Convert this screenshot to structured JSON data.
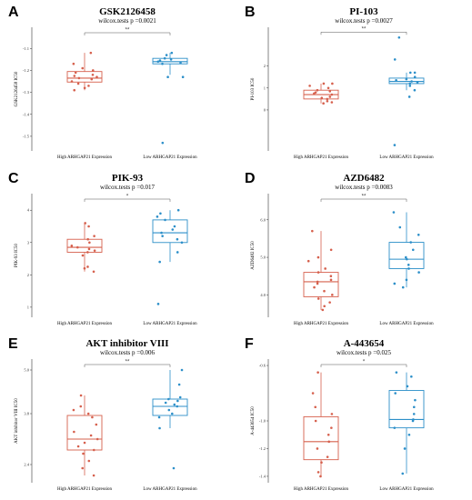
{
  "colors": {
    "high": "#d6604d",
    "low": "#2c8fc9"
  },
  "chart_data": [
    {
      "type": "box",
      "letter": "A",
      "title": "GSK2126458",
      "subtitle": "wilcox.tests p =0.0021",
      "sig": "**",
      "ylabel": "GSK2126458 IC50",
      "ylim": [
        -1.55,
        -1.02
      ],
      "yticks": [
        "-1.1",
        "-1.2",
        "-1.3",
        "-1.4",
        "-1.5"
      ],
      "ytick_values": [
        -1.1,
        -1.2,
        -1.3,
        -1.4,
        -1.5
      ],
      "categories": [
        "High ARHGAP21 Expression",
        "Low ARHGAP21 Expression"
      ],
      "series": [
        {
          "min": -1.29,
          "q1": -1.253,
          "median": -1.235,
          "q3": -1.205,
          "max": -1.12,
          "points": [
            -1.12,
            -1.17,
            -1.19,
            -1.2,
            -1.21,
            -1.22,
            -1.225,
            -1.23,
            -1.235,
            -1.24,
            -1.25,
            -1.26,
            -1.27,
            -1.28,
            -1.29
          ]
        },
        {
          "min": -1.22,
          "q1": -1.17,
          "median": -1.16,
          "q3": -1.145,
          "max": -1.12,
          "points": [
            -1.12,
            -1.13,
            -1.145,
            -1.15,
            -1.155,
            -1.16,
            -1.165,
            -1.17,
            -1.23,
            -1.23,
            -1.53
          ]
        }
      ]
    },
    {
      "type": "box",
      "letter": "B",
      "title": "PI-103",
      "subtitle": "wilcox.tests p =0.0027",
      "sig": "**",
      "ylabel": "PI-103 IC50",
      "ylim": [
        -1.7,
        3.6
      ],
      "yticks": [
        "2",
        "1",
        "0"
      ],
      "ytick_values": [
        2,
        1,
        0
      ],
      "categories": [
        "High ARHGAP21 Expression",
        "Low ARHGAP21 Expression"
      ],
      "series": [
        {
          "min": 0.3,
          "q1": 0.5,
          "median": 0.7,
          "q3": 0.9,
          "max": 1.2,
          "points": [
            0.3,
            0.35,
            0.4,
            0.5,
            0.55,
            0.6,
            0.7,
            0.75,
            0.8,
            0.85,
            0.9,
            1.0,
            1.1,
            1.2,
            1.2
          ]
        },
        {
          "min": 0.9,
          "q1": 1.2,
          "median": 1.3,
          "q3": 1.45,
          "max": 1.7,
          "points": [
            0.6,
            0.9,
            1.1,
            1.2,
            1.25,
            1.3,
            1.35,
            1.4,
            1.5,
            1.7,
            1.7,
            2.3,
            3.3,
            -1.6
          ]
        }
      ]
    },
    {
      "type": "box",
      "letter": "C",
      "title": "PIK-93",
      "subtitle": "wilcox.tests p =0.017",
      "sig": "*",
      "ylabel": "PIK-93 IC50",
      "ylim": [
        0.8,
        4.4
      ],
      "yticks": [
        "4",
        "3",
        "2",
        "1"
      ],
      "ytick_values": [
        4,
        3,
        2,
        1
      ],
      "categories": [
        "High ARHGAP21 Expression",
        "Low ARHGAP21 Expression"
      ],
      "series": [
        {
          "min": 2.1,
          "q1": 2.7,
          "median": 2.85,
          "q3": 3.1,
          "max": 3.6,
          "points": [
            2.1,
            2.2,
            2.25,
            2.6,
            2.7,
            2.75,
            2.8,
            2.85,
            2.9,
            3.0,
            3.1,
            3.2,
            3.5,
            3.6
          ]
        },
        {
          "min": 2.4,
          "q1": 3.0,
          "median": 3.3,
          "q3": 3.7,
          "max": 4.0,
          "points": [
            1.1,
            2.4,
            2.7,
            3.0,
            3.1,
            3.2,
            3.3,
            3.4,
            3.5,
            3.7,
            3.8,
            3.9,
            4.0
          ]
        }
      ]
    },
    {
      "type": "box",
      "letter": "D",
      "title": "AZD6482",
      "subtitle": "wilcox.tests p =0.0083",
      "sig": "**",
      "ylabel": "AZD6482 IC50",
      "ylim": [
        3.5,
        6.6
      ],
      "yticks": [
        "6.0",
        "5.0",
        "4.0"
      ],
      "ytick_values": [
        6.0,
        5.0,
        4.0
      ],
      "categories": [
        "High ARHGAP21 Expression",
        "Low ARHGAP21 Expression"
      ],
      "series": [
        {
          "min": 3.6,
          "q1": 3.95,
          "median": 4.35,
          "q3": 4.6,
          "max": 5.7,
          "points": [
            3.6,
            3.7,
            3.8,
            3.9,
            4.0,
            4.1,
            4.2,
            4.3,
            4.35,
            4.4,
            4.5,
            4.6,
            4.7,
            4.9,
            5.0,
            5.2,
            5.7
          ]
        },
        {
          "min": 4.2,
          "q1": 4.7,
          "median": 4.95,
          "q3": 5.4,
          "max": 6.2,
          "points": [
            4.2,
            4.3,
            4.4,
            4.6,
            4.7,
            4.8,
            4.95,
            5.0,
            5.2,
            5.4,
            5.6,
            5.8,
            6.2
          ]
        }
      ]
    },
    {
      "type": "box",
      "letter": "E",
      "title": "AKT inhibitor VIII",
      "subtitle": "wilcox.tests p =0.006",
      "sig": "**",
      "ylabel": "AKT inhibitor VIII IC50",
      "ylim": [
        2.0,
        5.2
      ],
      "yticks": [
        "5.0",
        "3.8",
        "2.4"
      ],
      "ytick_values": [
        5.0,
        3.8,
        2.4
      ],
      "categories": [
        "High ARHGAP21 Expression",
        "Low ARHGAP21 Expression"
      ],
      "series": [
        {
          "min": 2.1,
          "q1": 2.8,
          "median": 3.1,
          "q3": 3.75,
          "max": 4.3,
          "points": [
            2.1,
            2.3,
            2.5,
            2.7,
            2.8,
            2.9,
            3.0,
            3.1,
            3.2,
            3.3,
            3.5,
            3.7,
            3.8,
            3.9,
            4.0,
            4.3
          ]
        },
        {
          "min": 3.4,
          "q1": 3.75,
          "median": 4.0,
          "q3": 4.2,
          "max": 5.0,
          "points": [
            2.3,
            3.4,
            3.7,
            3.8,
            3.9,
            4.0,
            4.05,
            4.1,
            4.15,
            4.2,
            4.25,
            4.6,
            5.0
          ]
        }
      ]
    },
    {
      "type": "box",
      "letter": "F",
      "title": "A-443654",
      "subtitle": "wilcox.tests p =0.025",
      "sig": "*",
      "ylabel": "A-443654 IC50",
      "ylim": [
        -1.42,
        -0.58
      ],
      "yticks": [
        "-0.6",
        "-1.0",
        "-1.2",
        "-1.4"
      ],
      "ytick_values": [
        -0.6,
        -1.0,
        -1.2,
        -1.4
      ],
      "categories": [
        "High ARHGAP21 Expression",
        "Low ARHGAP21 Expression"
      ],
      "series": [
        {
          "min": -1.4,
          "q1": -1.28,
          "median": -1.15,
          "q3": -0.97,
          "max": -0.65,
          "points": [
            -1.4,
            -1.37,
            -1.3,
            -1.26,
            -1.2,
            -1.15,
            -1.1,
            -1.05,
            -1.0,
            -0.95,
            -0.9,
            -0.8,
            -0.65
          ]
        },
        {
          "min": -1.38,
          "q1": -1.05,
          "median": -0.99,
          "q3": -0.78,
          "max": -0.65,
          "points": [
            -1.38,
            -1.2,
            -1.1,
            -1.05,
            -1.0,
            -0.99,
            -0.95,
            -0.9,
            -0.85,
            -0.8,
            -0.75,
            -0.68,
            -0.65
          ]
        }
      ]
    }
  ]
}
